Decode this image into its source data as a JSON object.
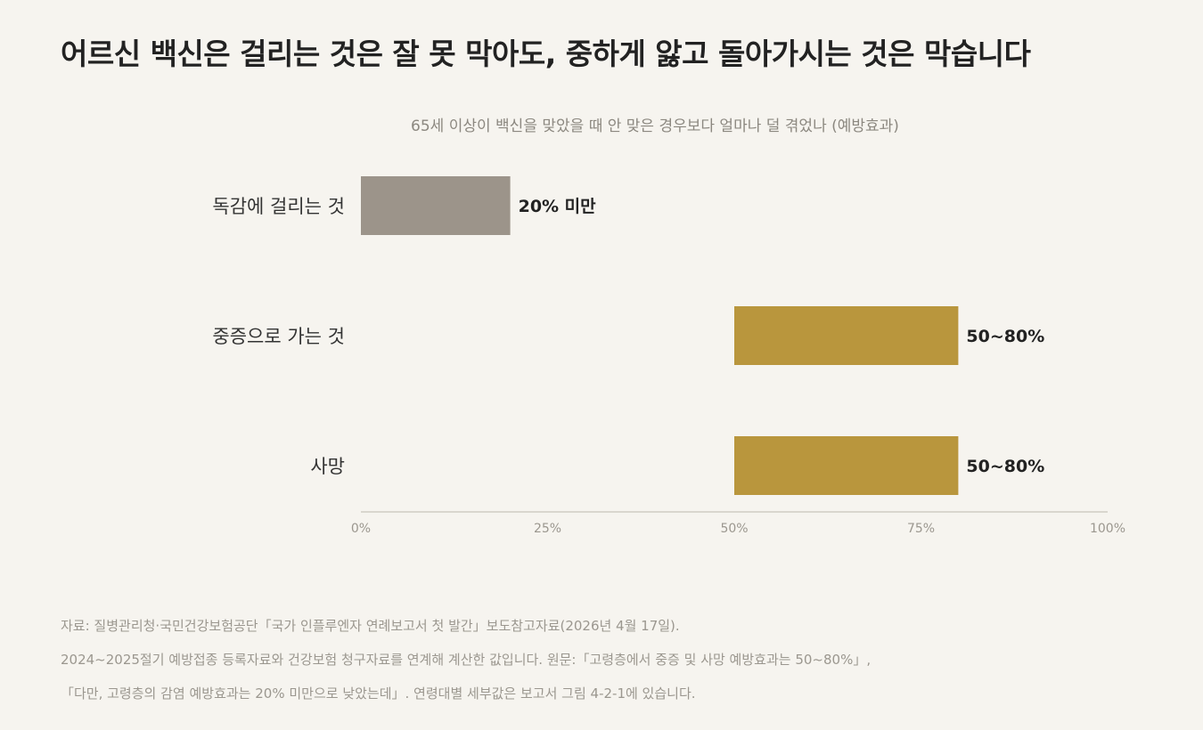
{
  "title": "어르신 백신은 걸리는 것은 잘 못 막아도, 중하게 앓고 돌아가시는 것은 막습니다",
  "subtitle": "65세 이상이 백신을 맞았을 때 안 맞은 경우보다 얼마나 덜 겪었나 (예방효과)",
  "chart_data": {
    "type": "bar",
    "orientation": "horizontal",
    "categories": [
      "독감에 걸리는 것",
      "중증으로 가는 것",
      "사망"
    ],
    "ranges": [
      [
        0,
        20
      ],
      [
        50,
        80
      ],
      [
        50,
        80
      ]
    ],
    "value_labels": [
      "20% 미만",
      "50~80%",
      "50~80%"
    ],
    "bar_colors": [
      "#9c948a",
      "#b9963d",
      "#b9963d"
    ],
    "xlim": [
      0,
      100
    ],
    "xticks": [
      0,
      25,
      50,
      75,
      100
    ],
    "xtick_labels": [
      "0%",
      "25%",
      "50%",
      "75%",
      "100%"
    ],
    "grid": false
  },
  "footnote": {
    "lines": [
      "자료: 질병관리청·국민건강보험공단「국가 인플루엔자 연례보고서 첫 발간」보도참고자료(2026년 4월 17일).",
      "2024~2025절기 예방접종 등록자료와 건강보험 청구자료를 연계해 계산한 값입니다. 원문:「고령층에서 중증 및 사망 예방효과는 50~80%」,",
      "「다만, 고령층의 감염 예방효과는 20% 미만으로 낮았는데」. 연령대별 세부값은 보고서 그림 4-2-1에 있습니다."
    ]
  }
}
